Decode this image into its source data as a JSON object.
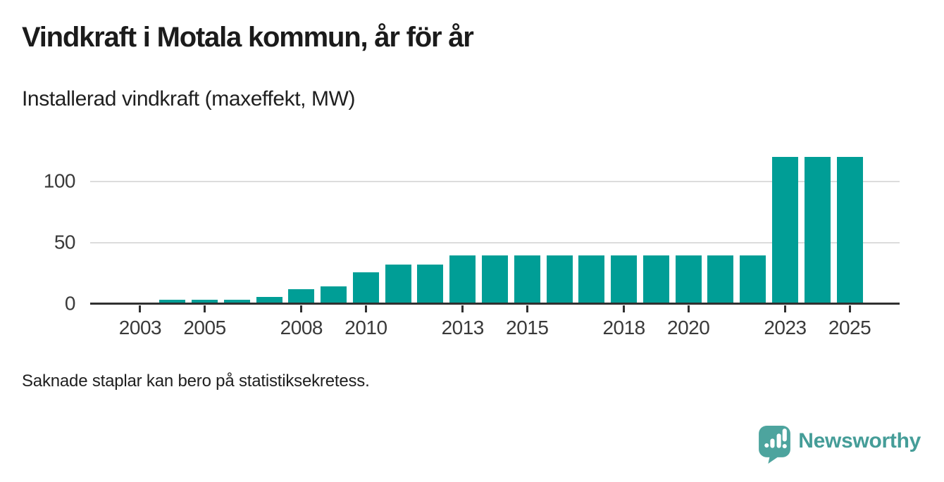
{
  "chart_data": {
    "type": "bar",
    "title": "Vindkraft i Motala kommun, år för år",
    "subtitle": "Installerad vindkraft (maxeffekt, MW)",
    "note": "Saknade staplar kan bero på statistiksekretess.",
    "xlabel": "",
    "ylabel": "MW",
    "categories": [
      2004,
      2005,
      2006,
      2007,
      2008,
      2009,
      2010,
      2011,
      2012,
      2013,
      2014,
      2015,
      2016,
      2017,
      2018,
      2019,
      2020,
      2021,
      2022,
      2023,
      2024,
      2025
    ],
    "values": [
      3.5,
      3.5,
      3.5,
      6,
      12,
      14.5,
      26,
      32,
      32,
      39.5,
      39.5,
      39.5,
      39.5,
      39.5,
      39.5,
      39.5,
      39.5,
      39.5,
      39.5,
      120,
      120,
      120
    ],
    "missing_years_before_first_bar": [
      2003
    ],
    "xticks": [
      2003,
      2005,
      2008,
      2010,
      2013,
      2015,
      2018,
      2020,
      2023,
      2025
    ],
    "xtick_labels": [
      "2003",
      "2005",
      "2008",
      "2010",
      "2013",
      "2015",
      "2018",
      "2020",
      "2023",
      "2025"
    ],
    "yticks": [
      0,
      50,
      100
    ],
    "ytick_labels": [
      "0",
      "50",
      "100"
    ],
    "ylim": [
      0,
      133
    ],
    "xlim": [
      2001.45,
      2026.55
    ],
    "grid": "horizontal",
    "legend": null,
    "colors": {
      "bar": "#009e96",
      "axis": "#303030",
      "grid": "#dcdcdc",
      "tick_text": "#3a3a3a",
      "title_text": "#1b1b1b",
      "logo": "#459d98"
    }
  },
  "branding": {
    "logo_text": "Newsworthy",
    "logo_icon": "speech-bubble-bar-chart-exclamation"
  }
}
